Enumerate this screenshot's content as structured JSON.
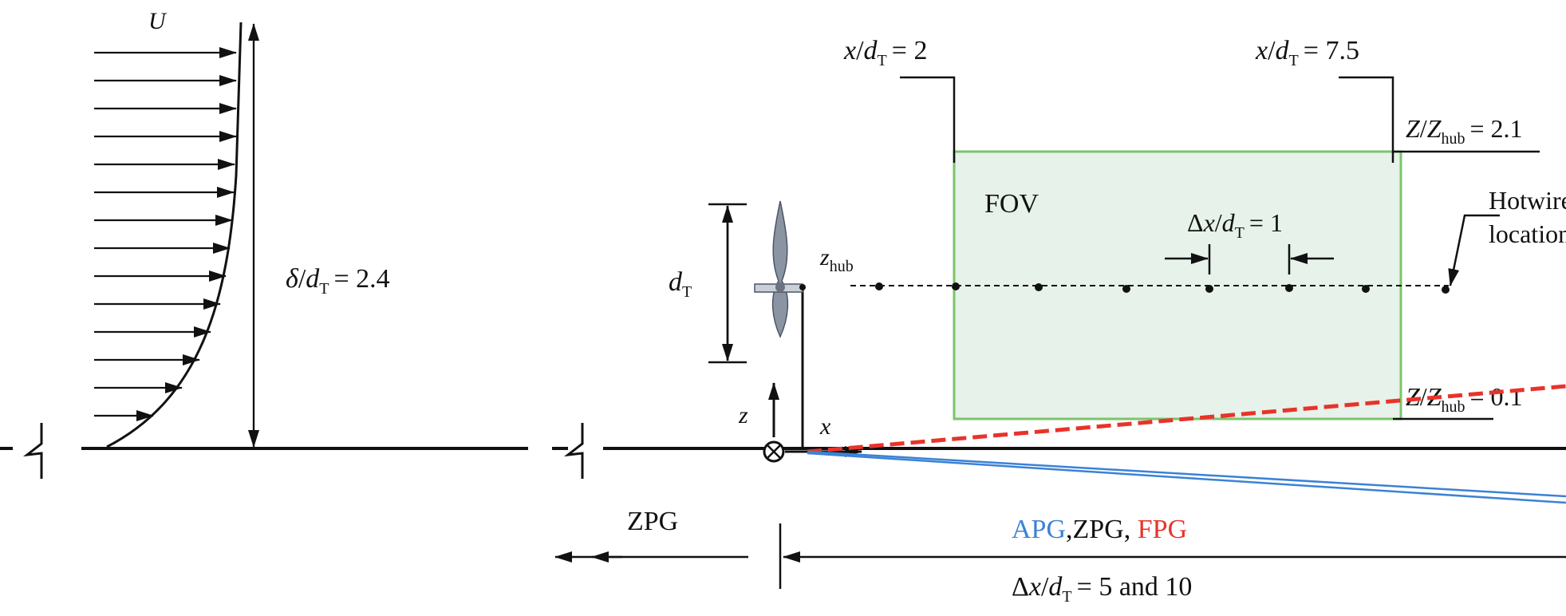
{
  "velocity_profile": {
    "freestream_symbol": "U",
    "thickness": {
      "delta": "δ",
      "d": "d",
      "sub": "T",
      "value": "= 2.4"
    }
  },
  "turbine": {
    "diameter": {
      "d": "d",
      "sub": "T"
    },
    "hub_height": {
      "z": "z",
      "sub": "hub"
    },
    "axis_z": "z",
    "axis_x": "x"
  },
  "fov": {
    "label": "FOV",
    "start": {
      "x": "x",
      "d": "d",
      "sub": "T",
      "value": "= 2"
    },
    "end": {
      "x": "x",
      "d": "d",
      "sub": "T",
      "value": "= 7.5"
    },
    "top": {
      "Z": "Z",
      "Zhub": "Z",
      "sub": "hub",
      "value": "= 2.1"
    },
    "bottom": {
      "Z": "Z",
      "Zhub": "Z",
      "sub": "hub",
      "value": "= 0.1"
    },
    "spacing": {
      "delta": "Δ",
      "x": "x",
      "d": "d",
      "sub": "T",
      "value": "= 1"
    }
  },
  "hotwire": {
    "line1": "Hotwire",
    "line2": "location"
  },
  "regions": {
    "upstream": "ZPG",
    "downstream": {
      "apg": "APG",
      "sep": ",ZPG, ",
      "fpg": "FPG"
    },
    "length": {
      "delta": "Δ",
      "x": "x",
      "d": "d",
      "sub": "T",
      "value": "= 5 and 10"
    }
  },
  "colors": {
    "fov_fill": "#e6f2ea",
    "fov_stroke": "#7cc46a",
    "apg": "#3b82d6",
    "fpg": "#e8332a",
    "ink": "#111111"
  }
}
